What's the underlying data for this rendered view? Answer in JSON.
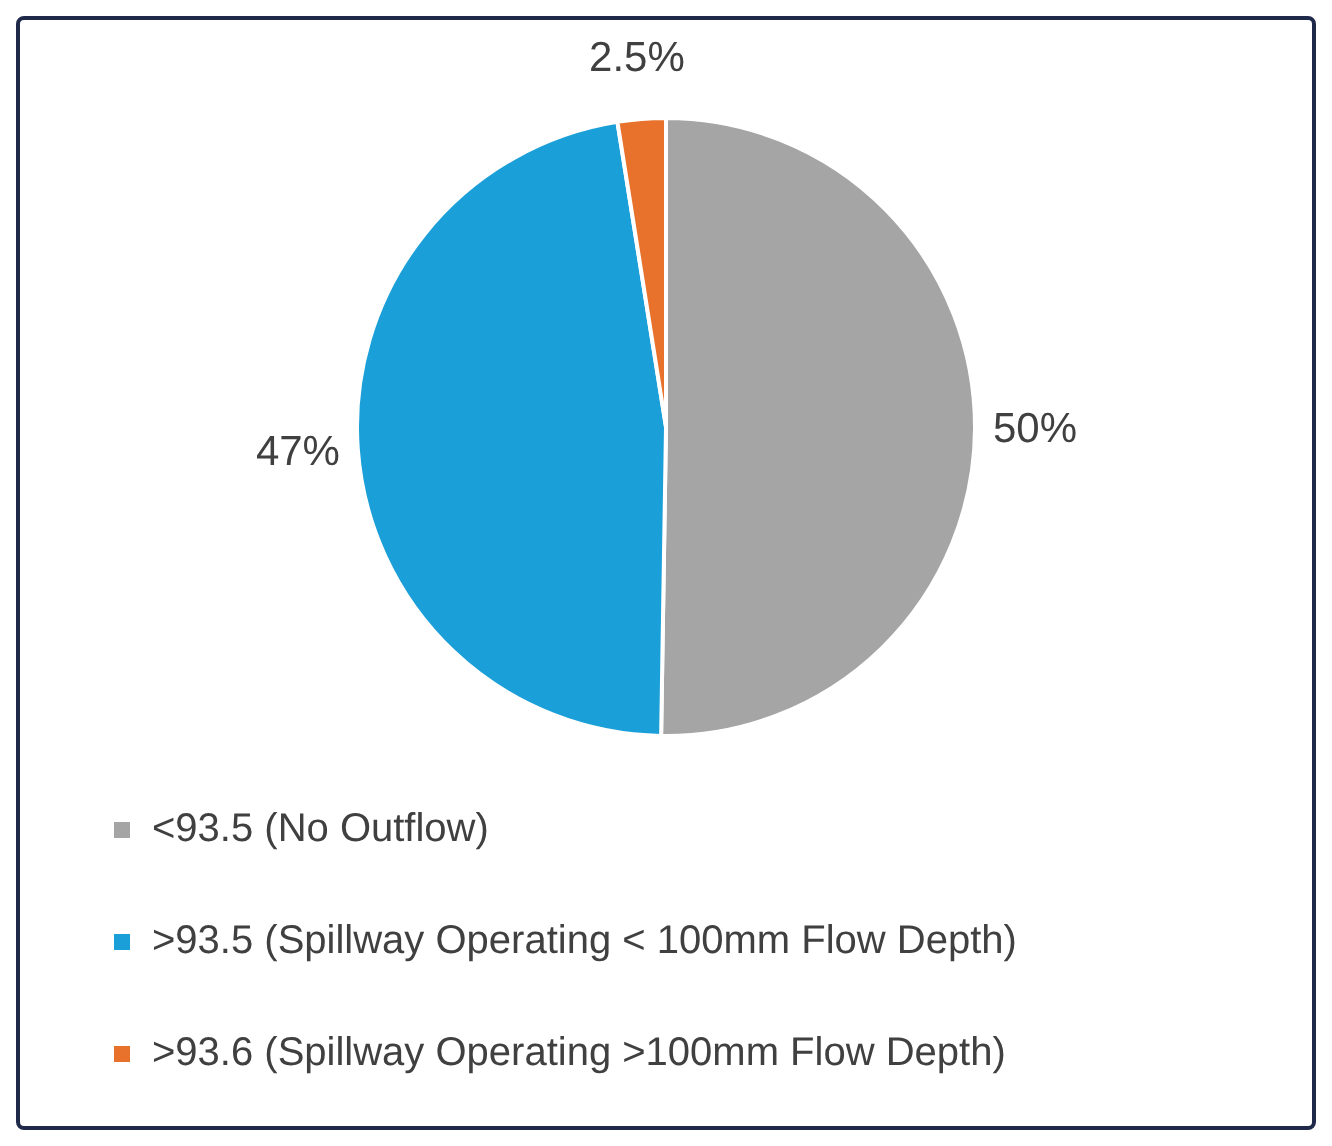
{
  "chart_data": {
    "type": "pie",
    "categories": [
      "<93.5 (No Outflow)",
      ">93.5 (Spillway Operating < 100mm Flow Depth)",
      ">93.6 (Spillway Operating >100mm Flow Depth)"
    ],
    "values": [
      50,
      47,
      2.5
    ],
    "colors": [
      "#a5a5a5",
      "#1a9fd8",
      "#e8722c"
    ],
    "value_labels": [
      "50%",
      "47%",
      "2.5%"
    ],
    "legend": "bottom"
  }
}
